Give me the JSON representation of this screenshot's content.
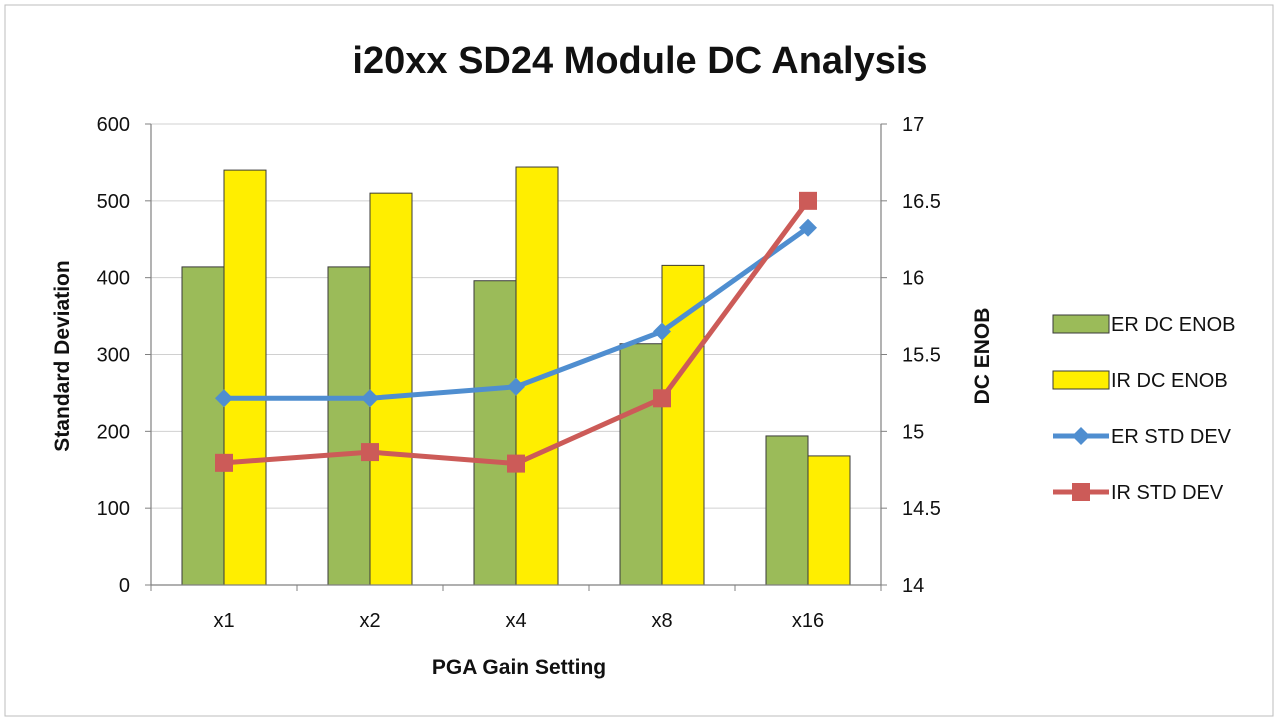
{
  "chart_data": {
    "type": "bar",
    "title": "i20xx SD24 Module DC Analysis",
    "xlabel": "PGA Gain Setting",
    "ylabel_left": "Standard Deviation",
    "ylabel_right": "DC ENOB",
    "categories": [
      "x1",
      "x2",
      "x4",
      "x8",
      "x16"
    ],
    "y_left": {
      "min": 0,
      "max": 600,
      "ticks": [
        "0",
        "100",
        "200",
        "300",
        "400",
        "500",
        "600"
      ]
    },
    "y_right": {
      "min": 14,
      "max": 17,
      "ticks": [
        "14",
        "14.5",
        "15",
        "15.5",
        "16",
        "16.5",
        "17"
      ]
    },
    "grid": true,
    "legend_position": "right",
    "series": [
      {
        "name": "ER DC ENOB",
        "type": "bar",
        "axis": "right",
        "color": "#9bbb59",
        "values": [
          16.07,
          16.07,
          15.98,
          15.57,
          14.97
        ]
      },
      {
        "name": "IR DC ENOB",
        "type": "bar",
        "axis": "right",
        "color": "#ffee00",
        "values": [
          16.7,
          16.55,
          16.72,
          16.08,
          14.84
        ]
      },
      {
        "name": "ER STD DEV",
        "type": "line",
        "axis": "left",
        "marker": "diamond",
        "color": "#4f8ed0",
        "values": [
          243,
          243,
          258,
          330,
          465
        ]
      },
      {
        "name": "IR STD DEV",
        "type": "line",
        "axis": "left",
        "marker": "square",
        "color": "#cc5b58",
        "values": [
          159,
          173,
          158,
          243,
          500
        ]
      }
    ]
  }
}
